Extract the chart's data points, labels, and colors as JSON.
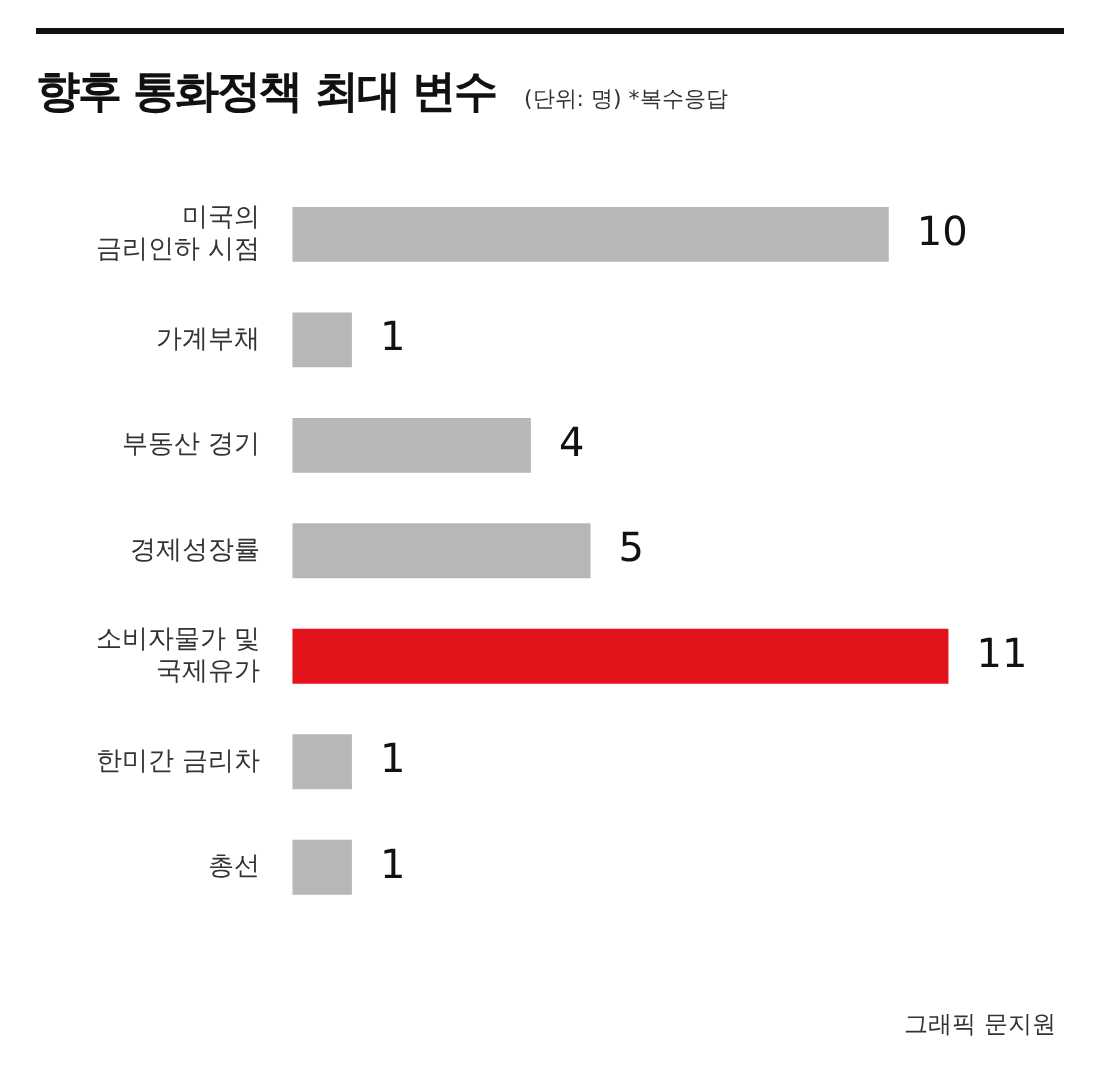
{
  "chart_data": {
    "type": "bar",
    "orientation": "horizontal",
    "title": "향후 통화정책 최대 변수",
    "subtitle": "(단위: 명) *복수응답",
    "categories": [
      "미국의\n금리인하 시점",
      "가계부채",
      "부동산 경기",
      "경제성장률",
      "소비자물가 및\n국제유가",
      "한미간 금리차",
      "총선"
    ],
    "values": [
      10,
      1,
      4,
      5,
      11,
      1,
      1
    ],
    "colors": [
      "#b7b7b7",
      "#b7b7b7",
      "#b7b7b7",
      "#b7b7b7",
      "#e2131b",
      "#b7b7b7",
      "#b7b7b7"
    ],
    "data_labels": true,
    "legend": false,
    "annotations": [
      "그래픽 문지원"
    ]
  }
}
